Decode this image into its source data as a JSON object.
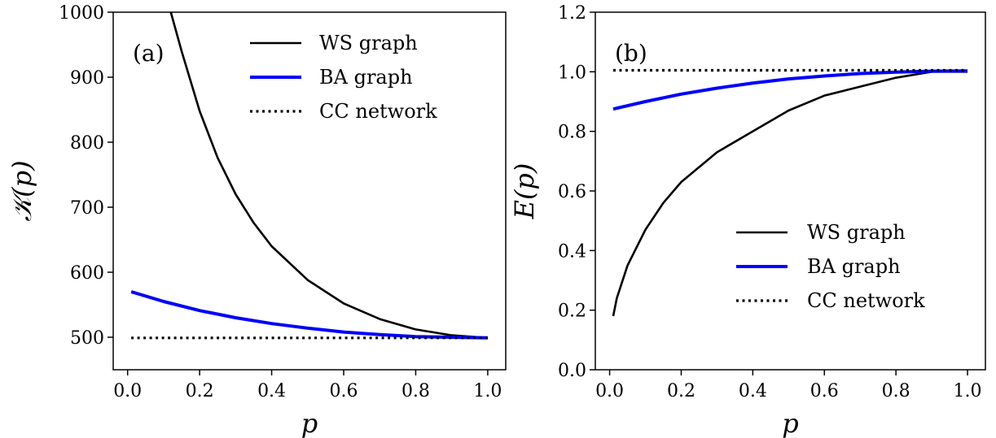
{
  "chart_data": [
    {
      "type": "line",
      "panel_label": "(a)",
      "xlabel": "p",
      "ylabel": "𝒦(p)",
      "xlim": [
        -0.04,
        1.05
      ],
      "ylim": [
        450,
        1000
      ],
      "xticks": [
        0.0,
        0.2,
        0.4,
        0.6,
        0.8,
        1.0
      ],
      "xtick_labels": [
        "0.0",
        "0.2",
        "0.4",
        "0.6",
        "0.8",
        "1.0"
      ],
      "yticks": [
        500,
        600,
        700,
        800,
        900,
        1000
      ],
      "ytick_labels": [
        "500",
        "600",
        "700",
        "800",
        "900",
        "1000"
      ],
      "grid": false,
      "legend_position": "top-right",
      "series": [
        {
          "name": "WS graph",
          "color": "#000000",
          "style": "solid",
          "x": [
            0.12,
            0.15,
            0.2,
            0.25,
            0.3,
            0.35,
            0.4,
            0.5,
            0.6,
            0.7,
            0.8,
            0.9,
            1.0
          ],
          "y": [
            1000,
            940,
            848,
            776,
            720,
            676,
            640,
            588,
            552,
            528,
            512,
            503,
            499
          ]
        },
        {
          "name": "BA graph",
          "color": "#0000ff",
          "style": "solid",
          "x": [
            0.01,
            0.1,
            0.2,
            0.3,
            0.4,
            0.5,
            0.6,
            0.7,
            0.8,
            0.9,
            1.0
          ],
          "y": [
            570,
            555,
            541,
            530,
            521,
            514,
            508,
            504,
            501,
            500,
            499
          ]
        },
        {
          "name": "CC network",
          "color": "#000000",
          "style": "dotted",
          "x": [
            0.01,
            1.0
          ],
          "y": [
            499,
            499
          ]
        }
      ]
    },
    {
      "type": "line",
      "panel_label": "(b)",
      "xlabel": "p",
      "ylabel": "E(p)",
      "xlim": [
        -0.04,
        1.05
      ],
      "ylim": [
        0.0,
        1.2
      ],
      "xticks": [
        0.0,
        0.2,
        0.4,
        0.6,
        0.8,
        1.0
      ],
      "xtick_labels": [
        "0.0",
        "0.2",
        "0.4",
        "0.6",
        "0.8",
        "1.0"
      ],
      "yticks": [
        0.0,
        0.2,
        0.4,
        0.6,
        0.8,
        1.0,
        1.2
      ],
      "ytick_labels": [
        "0.0",
        "0.2",
        "0.4",
        "0.6",
        "0.8",
        "1.0",
        "1.2"
      ],
      "grid": false,
      "legend_position": "lower-right",
      "series": [
        {
          "name": "WS graph",
          "color": "#000000",
          "style": "solid",
          "x": [
            0.01,
            0.02,
            0.05,
            0.1,
            0.15,
            0.2,
            0.3,
            0.4,
            0.5,
            0.6,
            0.7,
            0.8,
            0.9,
            1.0
          ],
          "y": [
            0.18,
            0.24,
            0.35,
            0.47,
            0.56,
            0.63,
            0.73,
            0.8,
            0.87,
            0.92,
            0.95,
            0.98,
            1.0,
            1.0
          ]
        },
        {
          "name": "BA graph",
          "color": "#0000ff",
          "style": "solid",
          "x": [
            0.01,
            0.1,
            0.2,
            0.3,
            0.4,
            0.5,
            0.6,
            0.7,
            0.8,
            0.9,
            1.0
          ],
          "y": [
            0.875,
            0.9,
            0.925,
            0.945,
            0.962,
            0.976,
            0.986,
            0.994,
            0.999,
            1.002,
            1.003
          ]
        },
        {
          "name": "CC network",
          "color": "#000000",
          "style": "dotted",
          "x": [
            0.01,
            1.0
          ],
          "y": [
            1.005,
            1.005
          ]
        }
      ]
    }
  ]
}
